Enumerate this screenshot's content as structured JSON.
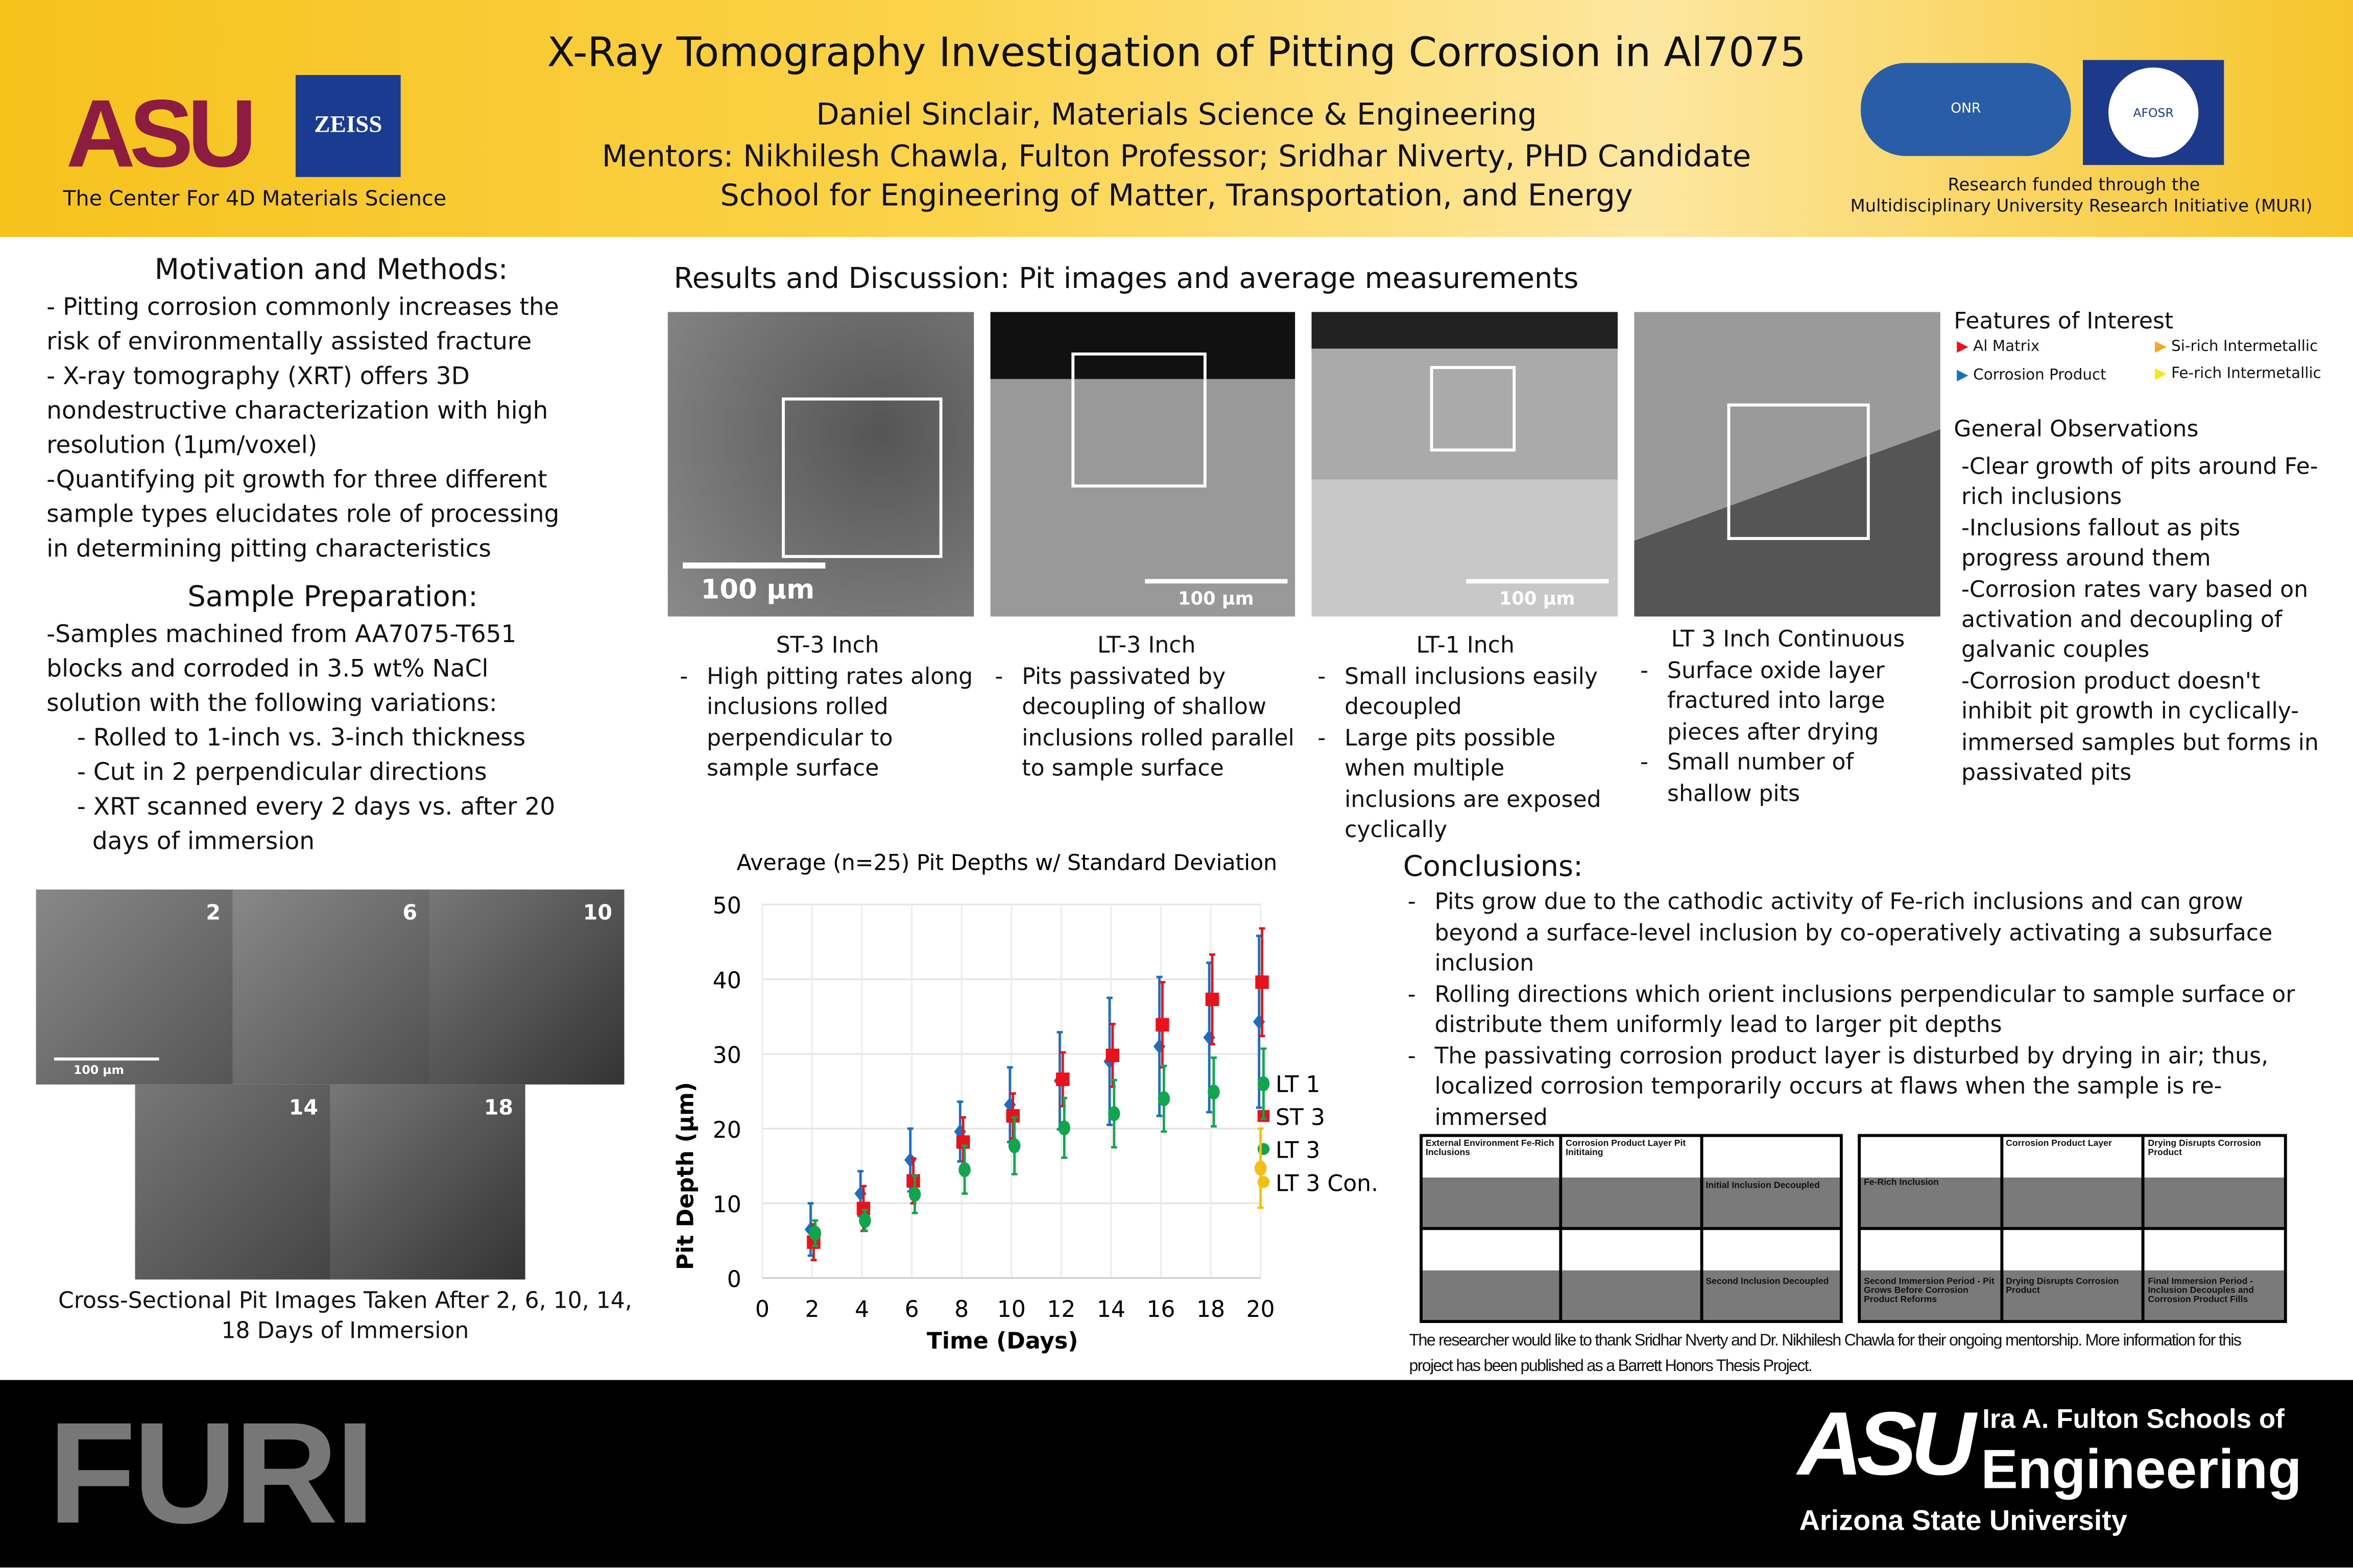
{
  "header": {
    "title": "X-Ray Tomography Investigation of Pitting Corrosion in Al7075",
    "author": "Daniel Sinclair, Materials Science & Engineering",
    "mentors": "Mentors: Nikhilesh Chawla, Fulton Professor; Sridhar Niverty, PHD Candidate",
    "school": "School for Engineering of Matter, Transportation, and Energy",
    "left_logo": "ASU",
    "zeiss_logo": "ZEISS",
    "center_name": "The Center For 4D Materials Science",
    "onr_logo": "ONR",
    "afosr_logo": "AFOSR",
    "funding": "Research funded through the",
    "funding2": "Multidisciplinary University Research Initiative (MURI)"
  },
  "motivation": {
    "heading": "Motivation and Methods:",
    "lines": [
      "- Pitting corrosion commonly increases the",
      "risk of environmentally assisted fracture",
      "- X-ray tomography (XRT) offers 3D",
      "nondestructive characterization with high",
      "resolution (1µm/voxel)",
      "-Quantifying pit growth for three different",
      "sample types elucidates role of processing",
      "in determining pitting characteristics"
    ]
  },
  "prep": {
    "heading": "Sample Preparation:",
    "lines": [
      "-Samples machined from AA7075-T651",
      "blocks and corroded in 3.5 wt% NaCl",
      "solution with the following variations:",
      "    - Rolled to 1-inch vs. 3-inch thickness",
      "    - Cut in 2 perpendicular directions",
      "    - XRT scanned every 2 days vs. after 20",
      "      days of immersion"
    ]
  },
  "cross": {
    "days": [
      "2",
      "6",
      "10",
      "14",
      "18"
    ],
    "scale": "100 µm",
    "caption1": "Cross-Sectional Pit Images Taken After 2, 6, 10, 14,",
    "caption2": "18 Days of Immersion"
  },
  "results": {
    "heading": "Results and Discussion: Pit images and average measurements",
    "scale": "100 µm",
    "panels": [
      {
        "title": "ST-3 Inch",
        "bullets": [
          "High pitting rates along inclusions rolled perpendicular to sample surface"
        ]
      },
      {
        "title": "LT-3 Inch",
        "bullets": [
          "Pits passivated by decoupling of shallow inclusions rolled parallel to sample surface"
        ]
      },
      {
        "title": "LT-1 Inch",
        "bullets": [
          "Small inclusions easily decoupled",
          "Large pits possible when multiple inclusions are exposed cyclically"
        ]
      },
      {
        "title": "LT 3 Inch Continuous",
        "bullets": [
          "Surface oxide layer fractured into large pieces after drying",
          "Small number of shallow pits"
        ]
      }
    ]
  },
  "features": {
    "heading": "Features of Interest",
    "legend": [
      {
        "label": "Al Matrix",
        "color": "#e8121a"
      },
      {
        "label": "Si-rich Intermetallic",
        "color": "#f5a623"
      },
      {
        "label": "Corrosion Product",
        "color": "#1b6fc0"
      },
      {
        "label": "Fe-rich Intermetallic",
        "color": "#f6e61b"
      }
    ]
  },
  "observations": {
    "heading": "General Observations",
    "lines": [
      "-Clear growth of pits around Fe-",
      "rich inclusions",
      "-Inclusions fallout as pits",
      "progress around them",
      "-Corrosion rates vary based on",
      "activation and decoupling of",
      "galvanic couples",
      "-Corrosion product doesn't",
      "inhibit pit growth in cyclically-",
      "immersed samples but forms in",
      "passivated pits"
    ]
  },
  "conclusions": {
    "heading": "Conclusions:",
    "items": [
      "Pits grow due to the cathodic activity of Fe-rich inclusions and can grow beyond a surface-level inclusion by co-operatively activating a subsurface inclusion",
      "Rolling directions which orient inclusions perpendicular to sample surface or distribute them uniformly lead to larger pit depths",
      "The passivating corrosion product layer is disturbed by drying in air; thus, localized corrosion temporarily occurs at flaws when the sample is re-immersed"
    ]
  },
  "diagram_left": [
    "External Environment\nFe-Rich Inclusions",
    "Corrosion Product Layer\nPit Inititaing",
    "Initial Inclusion Decoupled",
    "",
    "",
    "Second Inclusion Decoupled"
  ],
  "diagram_right": [
    "Fe-Rich Inclusion",
    "Corrosion Product Layer",
    "Drying Disrupts Corrosion Product",
    "Second Immersion Period - Pit Grows Before Corrosion Product Reforms",
    "Drying Disrupts Corrosion Product",
    "Final Immersion Period - Inclusion Decouples and Corrosion Product Fills"
  ],
  "acknowledgement": "The researcher would like to thank Sridhar Nverty and Dr. Nikhilesh Chawla for their ongoing mentorship. More information for this project has been published as a Barrett Honors Thesis Project.",
  "footer": {
    "furi": "FURI",
    "asu": "ASU",
    "school1": "Ira A. Fulton Schools of",
    "school2": "Engineering",
    "univ": "Arizona State University"
  },
  "chart_data": {
    "type": "scatter",
    "title": "Average (n=25) Pit Depths w/ Standard Deviation",
    "xlabel": "Time (Days)",
    "ylabel": "Pit Depth (µm)",
    "xlim": [
      0,
      20
    ],
    "ylim": [
      0,
      50
    ],
    "xticks": [
      0,
      2,
      4,
      6,
      8,
      10,
      12,
      14,
      16,
      18,
      20
    ],
    "yticks": [
      0,
      10,
      20,
      30,
      40,
      50
    ],
    "legend_position": "right",
    "grid": true,
    "series": [
      {
        "name": "LT 1",
        "color": "#1b6fc0",
        "marker": "diamond",
        "x": [
          2,
          4,
          6,
          8,
          10,
          12,
          14,
          16,
          18,
          20
        ],
        "y": [
          6.5,
          11.3,
          15.8,
          19.6,
          23.2,
          26.4,
          29,
          31,
          32.2,
          34.3
        ],
        "err": [
          3.5,
          3,
          4.2,
          4,
          5,
          6.5,
          8.5,
          9.3,
          10,
          11.5
        ]
      },
      {
        "name": "ST 3",
        "color": "#e8121a",
        "marker": "square",
        "x": [
          2,
          4,
          6,
          8,
          10,
          12,
          14,
          16,
          18,
          20
        ],
        "y": [
          4.8,
          9.3,
          13,
          18.2,
          21.7,
          26.6,
          29.8,
          33.9,
          37.3,
          39.6
        ],
        "err": [
          2.4,
          3,
          3,
          3.3,
          3,
          3.6,
          4.2,
          5.7,
          6,
          7.2
        ]
      },
      {
        "name": "LT 3",
        "color": "#12a64c",
        "marker": "circle",
        "x": [
          2,
          4,
          6,
          8,
          10,
          12,
          14,
          16,
          18,
          20
        ],
        "y": [
          6,
          7.7,
          11.2,
          14.5,
          17.7,
          20.1,
          22,
          24,
          24.9,
          26
        ],
        "err": [
          1.7,
          1.4,
          2.5,
          3.2,
          3.8,
          4,
          4.5,
          4.4,
          4.6,
          4.7
        ]
      },
      {
        "name": "LT 3 Con.",
        "color": "#f5be12",
        "marker": "circle",
        "x": [
          20
        ],
        "y": [
          14.7
        ],
        "err": [
          5.3
        ]
      }
    ]
  }
}
